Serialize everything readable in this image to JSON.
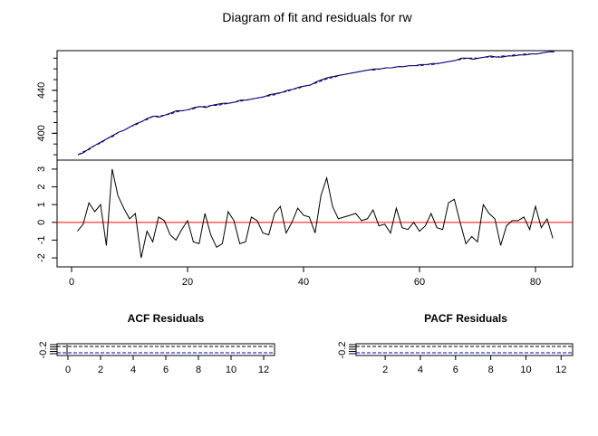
{
  "title": "Diagram of fit and residuals for rw",
  "colors": {
    "fit": "#0000cc",
    "observed": "#000000",
    "zero_line": "#ff0000",
    "conf_band": "#0000cc"
  },
  "chart_data": [
    {
      "type": "line",
      "panel": "fit",
      "x_range": [
        1,
        83
      ],
      "ylim": [
        375,
        477
      ],
      "y_ticks": [
        400,
        440
      ],
      "y_tick_labels": [
        "400",
        "440"
      ],
      "grid": false,
      "series": [],
      "observed": [
        380,
        382,
        386,
        389,
        392,
        395,
        398,
        401,
        403,
        406,
        409,
        411,
        414,
        416,
        415,
        417,
        419,
        421,
        421,
        422,
        424,
        425,
        424,
        426,
        427,
        428,
        428,
        429,
        431,
        431,
        432,
        433,
        434,
        436,
        437,
        438,
        440,
        441,
        443,
        444,
        445,
        448,
        450,
        452,
        453,
        454,
        455,
        456,
        457,
        458,
        459,
        460,
        460,
        461,
        461,
        462,
        462,
        463,
        463,
        464,
        464,
        465,
        465,
        466,
        467,
        468,
        470,
        470,
        469,
        470,
        471,
        472,
        471,
        471,
        472,
        472,
        473,
        473,
        474,
        474,
        475,
        476,
        476
      ],
      "fit": [
        380,
        383,
        385,
        389,
        391,
        395,
        397,
        401,
        403,
        406,
        408,
        411,
        413,
        416,
        416,
        417,
        418,
        420,
        421,
        422,
        423,
        425,
        425,
        426,
        426,
        427,
        428,
        429,
        430,
        431,
        432,
        433,
        434,
        435,
        436,
        438,
        439,
        441,
        442,
        444,
        445,
        447,
        449,
        451,
        452,
        454,
        455,
        456,
        457,
        458,
        459,
        459,
        460,
        461,
        461,
        462,
        462,
        463,
        463,
        463,
        464,
        464,
        465,
        466,
        467,
        468,
        469,
        470,
        470,
        470,
        471,
        471,
        471,
        472,
        472,
        473,
        473,
        474,
        474,
        474,
        475,
        476,
        476
      ]
    },
    {
      "type": "line",
      "panel": "residuals",
      "x_range": [
        1,
        83
      ],
      "ylim": [
        -2.2,
        3.2
      ],
      "y_ticks": [
        -2,
        -1,
        0,
        1,
        2,
        3
      ],
      "y_tick_labels": [
        "-2",
        "-1",
        "0",
        "1",
        "2",
        "3"
      ],
      "x_ticks": [
        0,
        20,
        40,
        60,
        80
      ],
      "x_tick_labels": [
        "0",
        "20",
        "40",
        "60",
        "80"
      ],
      "grid": false,
      "zero_line": 0,
      "values": [
        -0.5,
        -0.1,
        1.1,
        0.6,
        1.0,
        -1.3,
        3.0,
        1.5,
        0.8,
        0.2,
        0.5,
        -2.0,
        -0.5,
        -1.1,
        0.3,
        0.1,
        -0.7,
        -1.0,
        -0.4,
        0.1,
        -1.1,
        -1.2,
        0.5,
        -0.7,
        -1.4,
        -1.2,
        0.6,
        0.1,
        -1.2,
        -1.1,
        0.3,
        0.1,
        -0.6,
        -0.7,
        0.5,
        0.9,
        -0.6,
        0.0,
        0.8,
        0.4,
        0.3,
        -0.6,
        1.5,
        2.5,
        0.9,
        0.2,
        0.3,
        0.4,
        0.5,
        0.1,
        0.2,
        0.7,
        -0.2,
        -0.1,
        -0.6,
        0.8,
        -0.3,
        -0.4,
        0.0,
        -0.5,
        -0.2,
        0.5,
        -0.3,
        -0.4,
        1.1,
        1.3,
        0.0,
        -1.2,
        -0.8,
        -1.1,
        1.0,
        0.5,
        0.2,
        -1.3,
        -0.2,
        0.1,
        0.1,
        0.3,
        -0.4,
        0.9,
        -0.3,
        0.2,
        -0.9
      ]
    },
    {
      "type": "bar",
      "panel": "acf",
      "title": "ACF Residuals",
      "x_range": [
        -0.5,
        12.5
      ],
      "ylim": [
        -0.2,
        0.0
      ],
      "y_ticks": [
        -0.2
      ],
      "y_tick_labels": [
        "-0.2"
      ],
      "x_ticks": [
        0,
        2,
        4,
        6,
        8,
        10,
        12
      ],
      "x_tick_labels": [
        "0",
        "2",
        "4",
        "6",
        "8",
        "10",
        "12"
      ],
      "conf_bound": -0.21
    },
    {
      "type": "bar",
      "panel": "pacf",
      "title": "PACF Residuals",
      "x_range": [
        0.5,
        12.5
      ],
      "ylim": [
        -0.2,
        0.0
      ],
      "y_ticks": [
        -0.2
      ],
      "y_tick_labels": [
        "-0.2"
      ],
      "x_ticks": [
        2,
        4,
        6,
        8,
        10,
        12
      ],
      "x_tick_labels": [
        "2",
        "4",
        "6",
        "8",
        "10",
        "12"
      ],
      "conf_bound": -0.21
    }
  ]
}
